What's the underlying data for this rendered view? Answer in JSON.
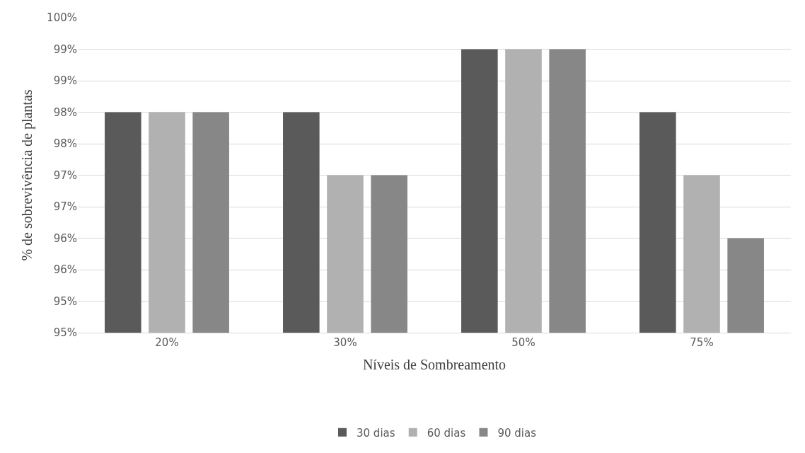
{
  "chart_data": {
    "type": "bar",
    "xlabel": "Níveis de Sombreamento",
    "ylabel": "% de sobrevivência de plantas",
    "categories": [
      "20%",
      "30%",
      "50%",
      "75%"
    ],
    "series": [
      {
        "name": "30 dias",
        "color": "#5a5a5a",
        "values": [
          98.5,
          98.5,
          99.5,
          98.5
        ]
      },
      {
        "name": "60 dias",
        "color": "#b1b1b1",
        "values": [
          98.5,
          97.5,
          99.5,
          97.5
        ]
      },
      {
        "name": "90 dias",
        "color": "#878787",
        "values": [
          98.5,
          97.5,
          99.5,
          96.5
        ]
      }
    ],
    "ylim": [
      95,
      100
    ],
    "yticks": [
      {
        "value": 95,
        "label": "95%"
      },
      {
        "value": 95.5,
        "label": "95%"
      },
      {
        "value": 96,
        "label": "96%"
      },
      {
        "value": 96.5,
        "label": "96%"
      },
      {
        "value": 97,
        "label": "97%"
      },
      {
        "value": 97.5,
        "label": "97%"
      },
      {
        "value": 98,
        "label": "98%"
      },
      {
        "value": 98.5,
        "label": "98%"
      },
      {
        "value": 99,
        "label": "99%"
      },
      {
        "value": 99.5,
        "label": "99%"
      },
      {
        "value": 100,
        "label": "100%"
      }
    ],
    "grid": "y",
    "legend": "bottom"
  }
}
